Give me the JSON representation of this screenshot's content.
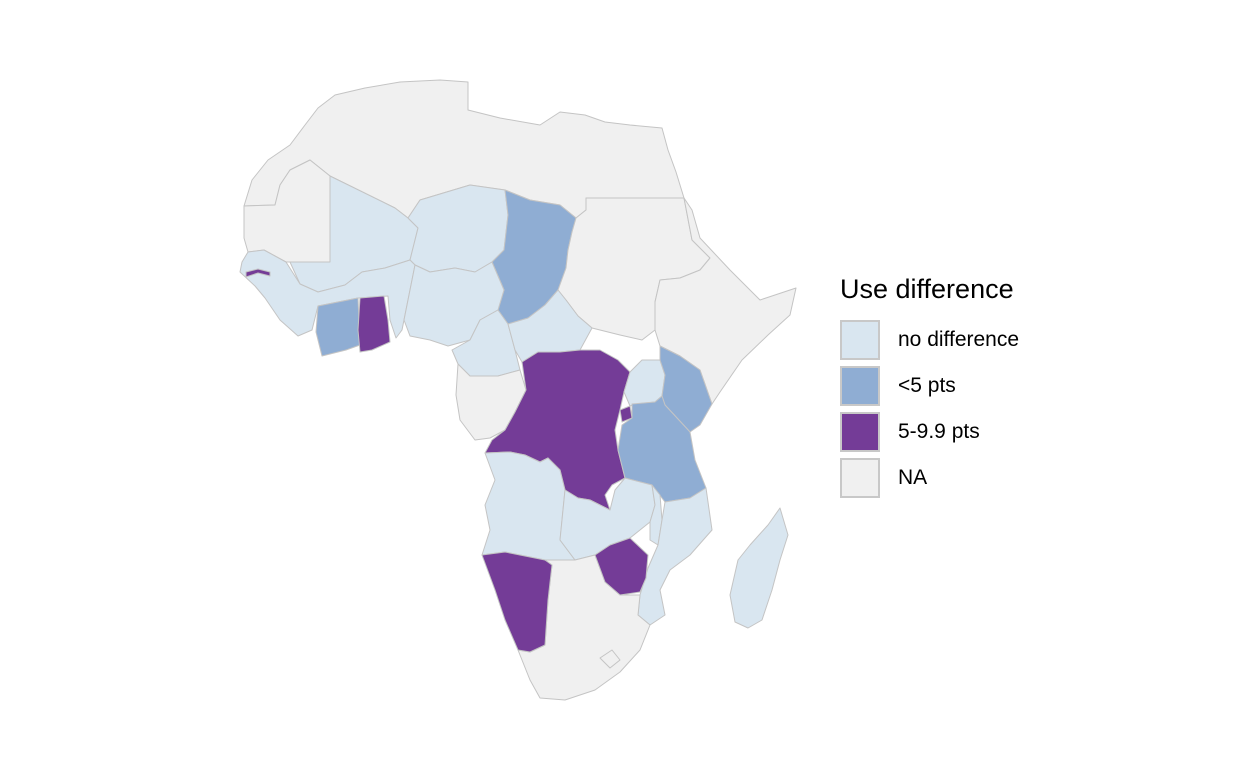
{
  "legend": {
    "title": "Use difference",
    "items": [
      {
        "key": "nodiff",
        "label": "no difference",
        "color": "#d9e6f0"
      },
      {
        "key": "lt5",
        "label": "<5 pts",
        "color": "#8fadd3"
      },
      {
        "key": "mid",
        "label": "5-9.9 pts",
        "color": "#743c97"
      },
      {
        "key": "na",
        "label": "NA",
        "color": "#f0f0f0"
      }
    ]
  },
  "regions": [
    {
      "name": "North Africa",
      "category": "na"
    },
    {
      "name": "Sudan",
      "category": "na"
    },
    {
      "name": "Horn of Africa",
      "category": "na"
    },
    {
      "name": "Mauritania",
      "category": "na"
    },
    {
      "name": "Southern Africa",
      "category": "na"
    },
    {
      "name": "Madagascar",
      "category": "nodiff"
    },
    {
      "name": "Mali",
      "category": "nodiff"
    },
    {
      "name": "Niger",
      "category": "nodiff"
    },
    {
      "name": "West Africa",
      "category": "nodiff"
    },
    {
      "name": "Nigeria",
      "category": "nodiff"
    },
    {
      "name": "Cameroon",
      "category": "nodiff"
    },
    {
      "name": "Central African Republic",
      "category": "nodiff"
    },
    {
      "name": "Angola",
      "category": "nodiff"
    },
    {
      "name": "Zambia",
      "category": "nodiff"
    },
    {
      "name": "Malawi",
      "category": "nodiff"
    },
    {
      "name": "Mozambique",
      "category": "nodiff"
    },
    {
      "name": "Uganda",
      "category": "nodiff"
    },
    {
      "name": "Gabon",
      "category": "na"
    },
    {
      "name": "Chad",
      "category": "lt5"
    },
    {
      "name": "Kenya",
      "category": "lt5"
    },
    {
      "name": "Tanzania",
      "category": "lt5"
    },
    {
      "name": "Cote d'Ivoire",
      "category": "lt5"
    },
    {
      "name": "Ghana",
      "category": "mid"
    },
    {
      "name": "Gambia",
      "category": "mid"
    },
    {
      "name": "DR Congo",
      "category": "mid"
    },
    {
      "name": "Rwanda",
      "category": "mid"
    },
    {
      "name": "Namibia",
      "category": "mid"
    },
    {
      "name": "Zimbabwe",
      "category": "mid"
    }
  ]
}
